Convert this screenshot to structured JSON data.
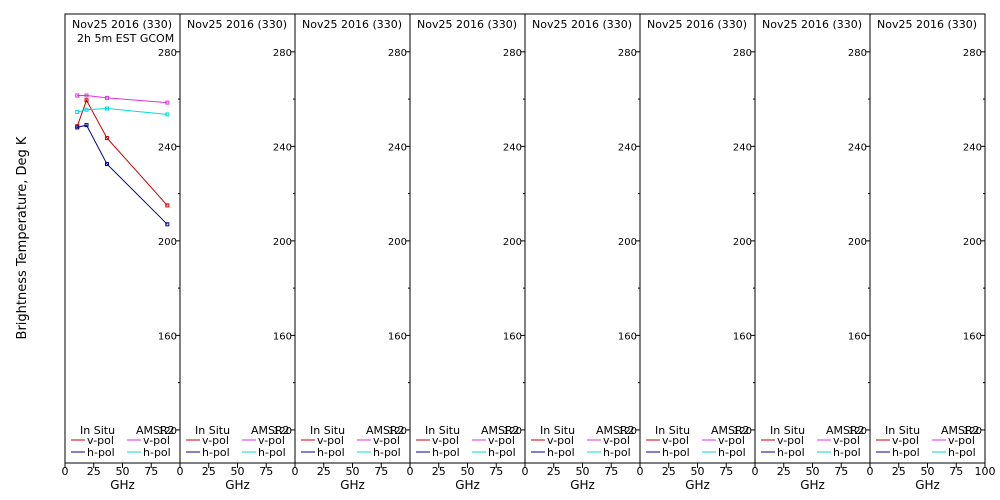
{
  "chart_data": {
    "type": "line",
    "ylabel": "Brightness Temperature, Deg K",
    "xlabel": "GHz",
    "xlim": [
      0,
      100
    ],
    "ylim": [
      106,
      296
    ],
    "x_ticks": [
      "0",
      "25",
      "50",
      "75",
      "100"
    ],
    "y_ticks": [
      120,
      160,
      200,
      240,
      280
    ],
    "series_colors": {
      "insitu_v": "#cc0000",
      "insitu_h": "#000099",
      "amsr2_v": "#dd33dd",
      "amsr2_h": "#00dddd"
    },
    "legend": {
      "in_situ": "In Situ",
      "amsr2": "AMSR2",
      "v_pol": "v-pol",
      "h_pol": "h-pol"
    },
    "panels": [
      {
        "title": "Nov25 2016 (330)",
        "subtitle": "2h 5m EST GCOM",
        "series": [
          {
            "key": "insitu_v",
            "x": [
              10.65,
              18.7,
              36.5,
              89.0
            ],
            "y": [
              248.5,
              259.5,
              243.5,
              215.0
            ]
          },
          {
            "key": "insitu_h",
            "x": [
              10.65,
              18.7,
              36.5,
              89.0
            ],
            "y": [
              248.0,
              249.0,
              232.5,
              207.0
            ]
          },
          {
            "key": "amsr2_v",
            "x": [
              10.65,
              18.7,
              36.5,
              89.0
            ],
            "y": [
              261.5,
              261.5,
              260.5,
              258.5
            ]
          },
          {
            "key": "amsr2_h",
            "x": [
              10.65,
              18.7,
              36.5,
              89.0
            ],
            "y": [
              254.5,
              255.5,
              256.0,
              253.5
            ]
          }
        ]
      },
      {
        "title": "Nov25 2016 (330)",
        "subtitle": "",
        "series": []
      },
      {
        "title": "Nov25 2016 (330)",
        "subtitle": "",
        "series": []
      },
      {
        "title": "Nov25 2016 (330)",
        "subtitle": "",
        "series": []
      },
      {
        "title": "Nov25 2016 (330)",
        "subtitle": "",
        "series": []
      },
      {
        "title": "Nov25 2016 (330)",
        "subtitle": "",
        "series": []
      },
      {
        "title": "Nov25 2016 (330)",
        "subtitle": "",
        "series": []
      },
      {
        "title": "Nov25 2016 (330)",
        "subtitle": "",
        "series": []
      }
    ]
  }
}
